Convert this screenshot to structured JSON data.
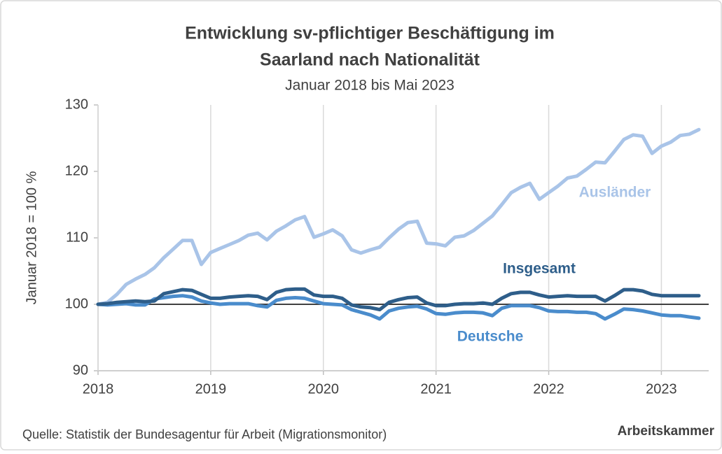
{
  "chart_data": {
    "type": "line",
    "title": [
      "Entwicklung sv-pflichtiger Beschäftigung im",
      "Saarland nach Nationalität"
    ],
    "subtitle": "Januar 2018 bis Mai 2023",
    "y_label": "Januar 2018 = 100 %",
    "source": "Quelle: Statistik der Bundesagentur für Arbeit (Migrationsmonitor)",
    "publisher": "Arbeitskammer",
    "x": [
      2018,
      2018.083,
      2018.167,
      2018.25,
      2018.333,
      2018.417,
      2018.5,
      2018.583,
      2018.667,
      2018.75,
      2018.833,
      2018.917,
      2019,
      2019.083,
      2019.167,
      2019.25,
      2019.333,
      2019.417,
      2019.5,
      2019.583,
      2019.667,
      2019.75,
      2019.833,
      2019.917,
      2020,
      2020.083,
      2020.167,
      2020.25,
      2020.333,
      2020.417,
      2020.5,
      2020.583,
      2020.667,
      2020.75,
      2020.833,
      2020.917,
      2021,
      2021.083,
      2021.167,
      2021.25,
      2021.333,
      2021.417,
      2021.5,
      2021.583,
      2021.667,
      2021.75,
      2021.833,
      2021.917,
      2022,
      2022.083,
      2022.167,
      2022.25,
      2022.333,
      2022.417,
      2022.5,
      2022.583,
      2022.667,
      2022.75,
      2022.833,
      2022.917,
      2023,
      2023.083,
      2023.167,
      2023.25,
      2023.333
    ],
    "series": [
      {
        "name": "Ausländer",
        "color": "#a9c4e8",
        "values": [
          100,
          100.3,
          101.5,
          103,
          103.8,
          104.5,
          105.5,
          107,
          108.3,
          109.6,
          109.6,
          106,
          107.8,
          108.4,
          109,
          109.6,
          110.4,
          110.7,
          109.7,
          111,
          111.8,
          112.7,
          113.2,
          110.1,
          110.6,
          111.2,
          110.3,
          108.2,
          107.7,
          108.2,
          108.6,
          110,
          111.3,
          112.3,
          112.5,
          109.2,
          109.1,
          108.8,
          110.1,
          110.3,
          111.1,
          112.2,
          113.3,
          115,
          116.8,
          117.6,
          118.2,
          115.8,
          116.8,
          117.8,
          119,
          119.3,
          120.3,
          121.4,
          121.3,
          123,
          124.8,
          125.5,
          125.3,
          122.7,
          123.8,
          124.4,
          125.4,
          125.6,
          126.3
        ]
      },
      {
        "name": "Deutsche",
        "color": "#4a8ccc",
        "values": [
          100,
          99.9,
          100,
          100.1,
          99.9,
          99.9,
          100.8,
          101,
          101.2,
          101.3,
          101.1,
          100.5,
          100.2,
          100,
          100.1,
          100.1,
          100.1,
          99.8,
          99.6,
          100.6,
          100.9,
          101,
          100.9,
          100.5,
          100.1,
          100,
          99.9,
          99.2,
          98.8,
          98.4,
          97.8,
          99,
          99.4,
          99.6,
          99.7,
          99.3,
          98.6,
          98.5,
          98.7,
          98.8,
          98.8,
          98.7,
          98.3,
          99.4,
          99.8,
          99.8,
          99.8,
          99.5,
          99,
          98.9,
          98.9,
          98.8,
          98.8,
          98.6,
          97.8,
          98.5,
          99.3,
          99.2,
          99,
          98.7,
          98.4,
          98.3,
          98.3,
          98.1,
          97.9
        ]
      },
      {
        "name": "Insgesamt",
        "color": "#2e5e8a",
        "values": [
          100,
          100.1,
          100.3,
          100.4,
          100.5,
          100.4,
          100.5,
          101.6,
          101.9,
          102.2,
          102.1,
          101.5,
          100.9,
          100.9,
          101.1,
          101.2,
          101.3,
          101.2,
          100.7,
          101.8,
          102.2,
          102.3,
          102.3,
          101.4,
          101.2,
          101.2,
          100.9,
          99.9,
          99.6,
          99.5,
          99.2,
          100.3,
          100.7,
          101,
          101.1,
          100.2,
          99.8,
          99.8,
          100,
          100.1,
          100.1,
          100.2,
          100,
          100.9,
          101.6,
          101.8,
          101.8,
          101.4,
          101.1,
          101.2,
          101.3,
          101.2,
          101.2,
          101.2,
          100.5,
          101.3,
          102.2,
          102.2,
          102,
          101.5,
          101.3,
          101.3,
          101.3,
          101.3,
          101.3
        ]
      }
    ],
    "reference_line": 100,
    "xlim": [
      2018,
      2023.42
    ],
    "xticks": [
      2018,
      2019,
      2020,
      2021,
      2022,
      2023
    ],
    "ylim": [
      90,
      130
    ],
    "yticks": [
      90,
      100,
      110,
      120,
      130
    ],
    "grid": "x"
  }
}
